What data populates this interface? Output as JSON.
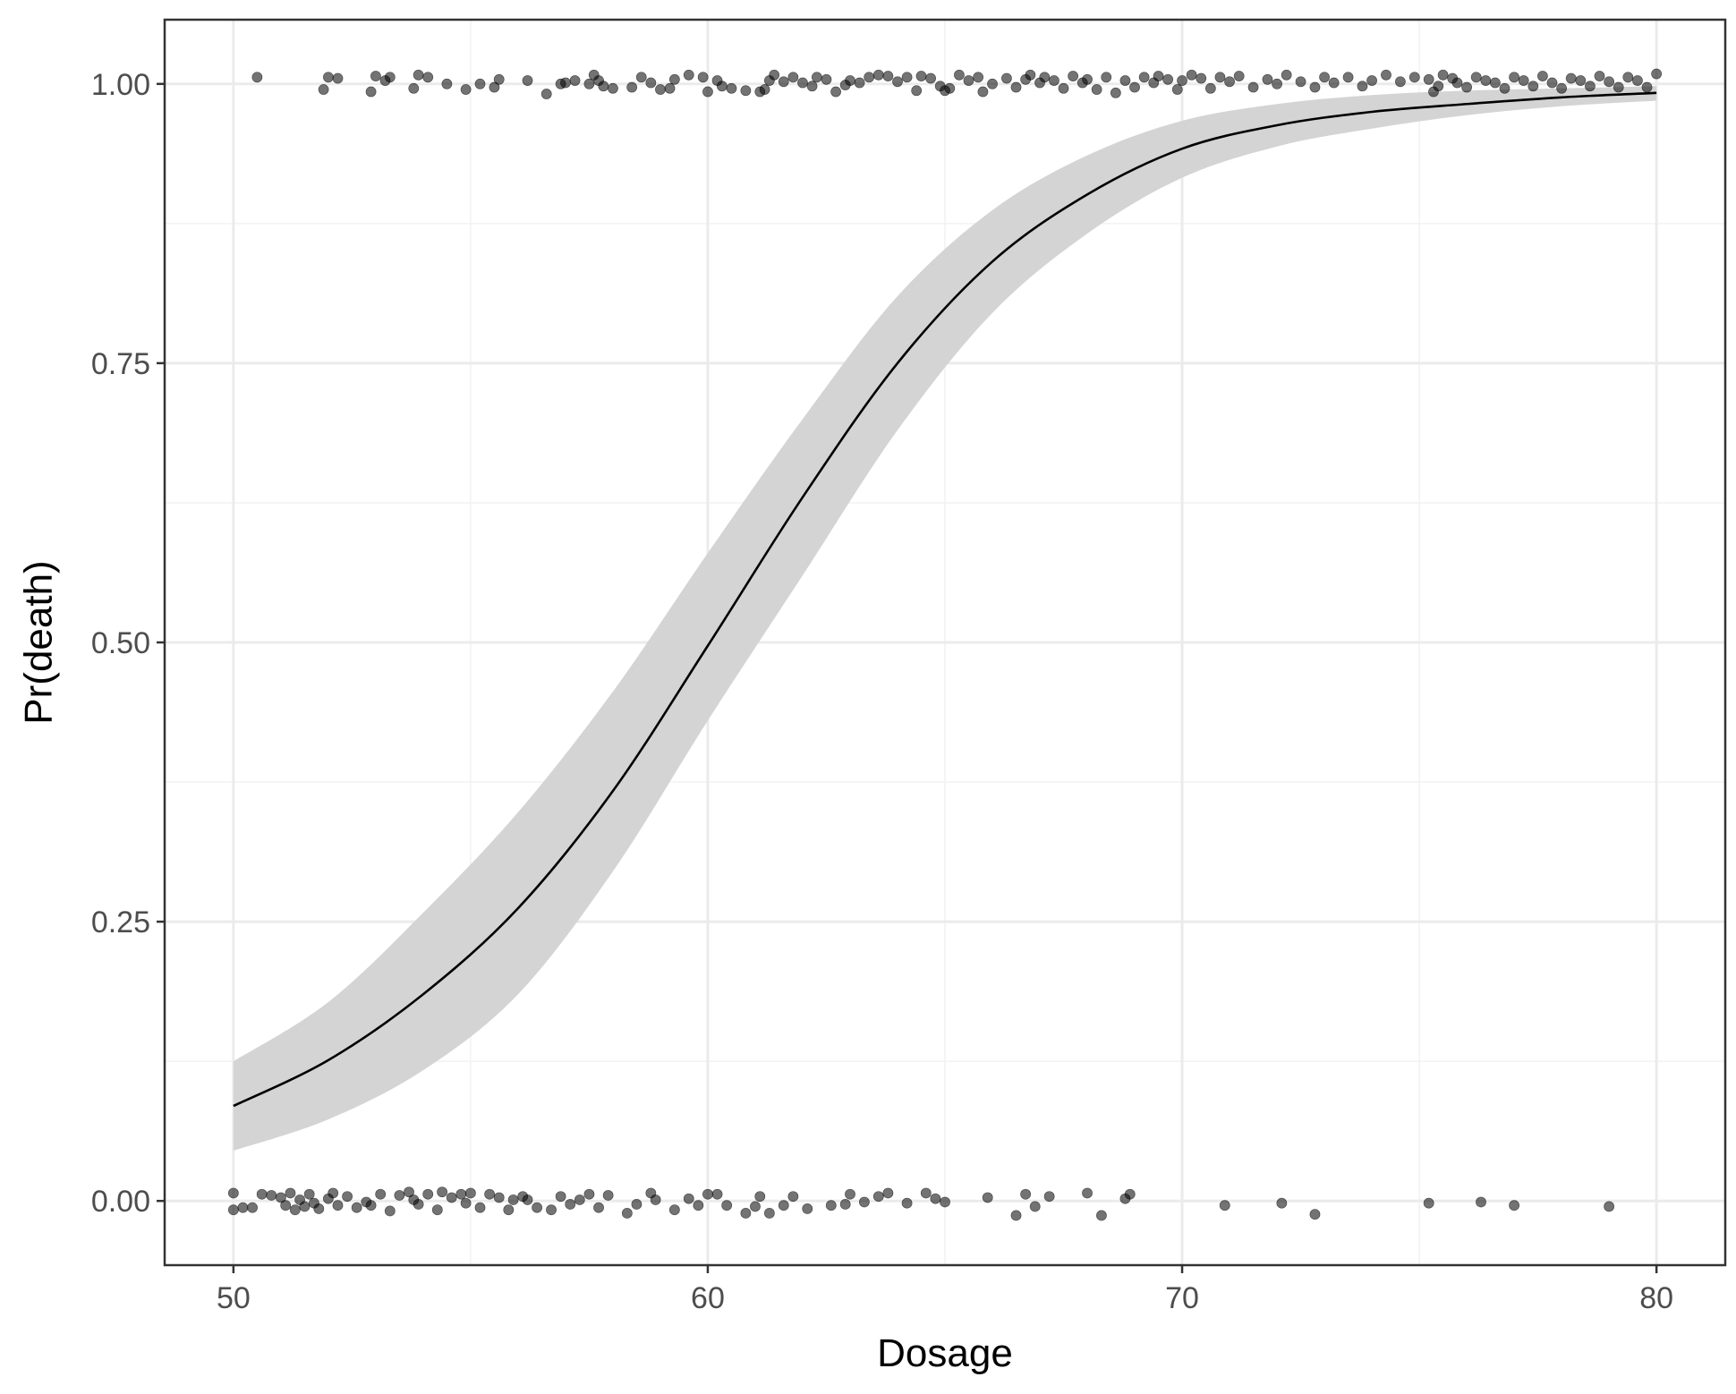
{
  "chart_data": {
    "type": "scatter",
    "title": "",
    "xlabel": "Dosage",
    "ylabel": "Pr(death)",
    "xlim": [
      48.55,
      81.45
    ],
    "ylim": [
      -0.0575,
      1.0575
    ],
    "x_ticks": [
      50,
      60,
      70,
      80
    ],
    "x_tick_labels": [
      "50",
      "60",
      "70",
      "80"
    ],
    "y_ticks": [
      0,
      0.25,
      0.5,
      0.75,
      1
    ],
    "y_tick_labels": [
      "0.00",
      "0.25",
      "0.50",
      "0.75",
      "1.00"
    ],
    "grid": true,
    "legend": "none",
    "colors": {
      "points": "#000000",
      "point_opacity": 0.55,
      "ribbon": "#d4d4d4",
      "fit_line": "#000000",
      "grid_major": "#ebebeb",
      "grid_minor": "#f2f2f2",
      "panel_border": "#333333"
    },
    "series": [
      {
        "kind": "jittered-points",
        "outcome": 1,
        "points": [
          [
            50.5,
            1.006
          ],
          [
            51.9,
            0.995
          ],
          [
            52.0,
            1.006
          ],
          [
            52.2,
            1.005
          ],
          [
            52.9,
            0.993
          ],
          [
            53.0,
            1.007
          ],
          [
            53.2,
            1.003
          ],
          [
            53.3,
            1.006
          ],
          [
            53.8,
            0.996
          ],
          [
            53.9,
            1.008
          ],
          [
            54.1,
            1.006
          ],
          [
            54.5,
            1.0
          ],
          [
            54.9,
            0.995
          ],
          [
            55.2,
            1.0
          ],
          [
            55.5,
            0.997
          ],
          [
            55.6,
            1.004
          ],
          [
            56.2,
            1.003
          ],
          [
            56.6,
            0.991
          ],
          [
            56.9,
            1.0
          ],
          [
            57.0,
            1.001
          ],
          [
            57.2,
            1.003
          ],
          [
            57.5,
            1.0
          ],
          [
            57.6,
            1.008
          ],
          [
            57.7,
            1.003
          ],
          [
            57.8,
            0.998
          ],
          [
            58.0,
            0.996
          ],
          [
            58.4,
            0.997
          ],
          [
            58.6,
            1.006
          ],
          [
            58.8,
            1.001
          ],
          [
            59.0,
            0.995
          ],
          [
            59.2,
            0.996
          ],
          [
            59.3,
            1.004
          ],
          [
            59.6,
            1.008
          ],
          [
            59.9,
            1.006
          ],
          [
            60.0,
            0.993
          ],
          [
            60.2,
            1.003
          ],
          [
            60.3,
            0.998
          ],
          [
            60.5,
            0.996
          ],
          [
            60.8,
            0.994
          ],
          [
            61.1,
            0.993
          ],
          [
            61.2,
            0.995
          ],
          [
            61.3,
            1.003
          ],
          [
            61.4,
            1.008
          ],
          [
            61.6,
            1.002
          ],
          [
            61.8,
            1.006
          ],
          [
            62.0,
            1.001
          ],
          [
            62.2,
            0.998
          ],
          [
            62.3,
            1.006
          ],
          [
            62.5,
            1.004
          ],
          [
            62.7,
            0.993
          ],
          [
            62.9,
            0.999
          ],
          [
            63.0,
            1.003
          ],
          [
            63.2,
            1.001
          ],
          [
            63.4,
            1.006
          ],
          [
            63.6,
            1.008
          ],
          [
            63.8,
            1.007
          ],
          [
            64.0,
            1.002
          ],
          [
            64.2,
            1.006
          ],
          [
            64.4,
            0.994
          ],
          [
            64.5,
            1.007
          ],
          [
            64.7,
            1.005
          ],
          [
            64.9,
            0.998
          ],
          [
            65.0,
            0.994
          ],
          [
            65.1,
            0.996
          ],
          [
            65.3,
            1.008
          ],
          [
            65.5,
            1.003
          ],
          [
            65.7,
            1.006
          ],
          [
            65.8,
            0.993
          ],
          [
            66.0,
            1.0
          ],
          [
            66.3,
            1.005
          ],
          [
            66.5,
            0.997
          ],
          [
            66.7,
            1.004
          ],
          [
            66.8,
            1.008
          ],
          [
            67.0,
            1.001
          ],
          [
            67.1,
            1.006
          ],
          [
            67.3,
            1.003
          ],
          [
            67.5,
            0.996
          ],
          [
            67.7,
            1.007
          ],
          [
            67.9,
            1.001
          ],
          [
            68.0,
            1.004
          ],
          [
            68.2,
            0.995
          ],
          [
            68.4,
            1.006
          ],
          [
            68.6,
            0.992
          ],
          [
            68.8,
            1.003
          ],
          [
            69.0,
            0.997
          ],
          [
            69.2,
            1.006
          ],
          [
            69.4,
            1.001
          ],
          [
            69.5,
            1.007
          ],
          [
            69.7,
            1.004
          ],
          [
            69.9,
            0.995
          ],
          [
            70.0,
            1.003
          ],
          [
            70.2,
            1.008
          ],
          [
            70.4,
            1.005
          ],
          [
            70.6,
            0.996
          ],
          [
            70.8,
            1.006
          ],
          [
            71.0,
            1.002
          ],
          [
            71.2,
            1.007
          ],
          [
            71.5,
            0.997
          ],
          [
            71.8,
            1.004
          ],
          [
            72.0,
            1.0
          ],
          [
            72.2,
            1.008
          ],
          [
            72.5,
            1.002
          ],
          [
            72.8,
            0.997
          ],
          [
            73.0,
            1.006
          ],
          [
            73.2,
            1.001
          ],
          [
            73.5,
            1.006
          ],
          [
            73.8,
            0.998
          ],
          [
            74.0,
            1.003
          ],
          [
            74.3,
            1.008
          ],
          [
            74.6,
            1.002
          ],
          [
            74.9,
            1.006
          ],
          [
            75.2,
            1.004
          ],
          [
            75.3,
            0.993
          ],
          [
            75.4,
            0.998
          ],
          [
            75.5,
            1.008
          ],
          [
            75.7,
            1.005
          ],
          [
            75.8,
            1.001
          ],
          [
            76.0,
            0.997
          ],
          [
            76.2,
            1.006
          ],
          [
            76.4,
            1.003
          ],
          [
            76.6,
            1.001
          ],
          [
            76.8,
            0.996
          ],
          [
            77.0,
            1.006
          ],
          [
            77.2,
            1.003
          ],
          [
            77.4,
            0.998
          ],
          [
            77.6,
            1.007
          ],
          [
            77.8,
            1.001
          ],
          [
            78.0,
            0.996
          ],
          [
            78.2,
            1.005
          ],
          [
            78.4,
            1.003
          ],
          [
            78.6,
            0.998
          ],
          [
            78.8,
            1.007
          ],
          [
            79.0,
            1.002
          ],
          [
            79.2,
            0.997
          ],
          [
            79.4,
            1.006
          ],
          [
            79.6,
            1.003
          ],
          [
            79.8,
            0.997
          ],
          [
            80.0,
            1.009
          ]
        ]
      },
      {
        "kind": "jittered-points",
        "outcome": 0,
        "points": [
          [
            50.0,
            0.007
          ],
          [
            50.0,
            -0.008
          ],
          [
            50.2,
            -0.006
          ],
          [
            50.4,
            -0.006
          ],
          [
            50.6,
            0.006
          ],
          [
            50.8,
            0.005
          ],
          [
            51.0,
            0.003
          ],
          [
            51.1,
            -0.004
          ],
          [
            51.2,
            0.007
          ],
          [
            51.3,
            -0.008
          ],
          [
            51.4,
            0.001
          ],
          [
            51.5,
            -0.005
          ],
          [
            51.6,
            0.006
          ],
          [
            51.7,
            -0.002
          ],
          [
            51.8,
            -0.007
          ],
          [
            52.0,
            0.002
          ],
          [
            52.1,
            0.007
          ],
          [
            52.2,
            -0.004
          ],
          [
            52.4,
            0.004
          ],
          [
            52.6,
            -0.006
          ],
          [
            52.8,
            -0.001
          ],
          [
            52.9,
            -0.004
          ],
          [
            53.1,
            0.006
          ],
          [
            53.3,
            -0.009
          ],
          [
            53.5,
            0.005
          ],
          [
            53.7,
            0.008
          ],
          [
            53.8,
            0.001
          ],
          [
            53.9,
            -0.003
          ],
          [
            54.1,
            0.006
          ],
          [
            54.3,
            -0.008
          ],
          [
            54.4,
            0.008
          ],
          [
            54.6,
            0.003
          ],
          [
            54.8,
            0.006
          ],
          [
            54.9,
            -0.002
          ],
          [
            55.0,
            0.007
          ],
          [
            55.2,
            -0.006
          ],
          [
            55.4,
            0.006
          ],
          [
            55.6,
            0.003
          ],
          [
            55.8,
            -0.008
          ],
          [
            55.9,
            0.001
          ],
          [
            56.1,
            0.004
          ],
          [
            56.2,
            0.001
          ],
          [
            56.4,
            -0.006
          ],
          [
            56.7,
            -0.008
          ],
          [
            56.9,
            0.004
          ],
          [
            57.1,
            -0.003
          ],
          [
            57.3,
            0.001
          ],
          [
            57.5,
            0.006
          ],
          [
            57.7,
            -0.006
          ],
          [
            57.9,
            0.005
          ],
          [
            58.3,
            -0.011
          ],
          [
            58.5,
            -0.003
          ],
          [
            58.8,
            0.007
          ],
          [
            58.9,
            0.001
          ],
          [
            59.3,
            -0.008
          ],
          [
            59.6,
            0.002
          ],
          [
            59.8,
            -0.004
          ],
          [
            60.0,
            0.006
          ],
          [
            60.2,
            0.006
          ],
          [
            60.4,
            -0.004
          ],
          [
            60.8,
            -0.011
          ],
          [
            61.0,
            -0.005
          ],
          [
            61.1,
            0.004
          ],
          [
            61.3,
            -0.011
          ],
          [
            61.6,
            -0.004
          ],
          [
            61.8,
            0.004
          ],
          [
            62.1,
            -0.007
          ],
          [
            62.6,
            -0.004
          ],
          [
            62.9,
            -0.003
          ],
          [
            63.0,
            0.006
          ],
          [
            63.3,
            -0.001
          ],
          [
            63.6,
            0.004
          ],
          [
            63.8,
            0.007
          ],
          [
            64.2,
            -0.002
          ],
          [
            64.6,
            0.007
          ],
          [
            64.8,
            0.002
          ],
          [
            65.0,
            -0.001
          ],
          [
            65.9,
            0.003
          ],
          [
            66.5,
            -0.013
          ],
          [
            66.7,
            0.006
          ],
          [
            66.9,
            -0.005
          ],
          [
            67.2,
            0.004
          ],
          [
            68.0,
            0.007
          ],
          [
            68.3,
            -0.013
          ],
          [
            68.8,
            0.002
          ],
          [
            68.9,
            0.006
          ],
          [
            70.9,
            -0.004
          ],
          [
            72.1,
            -0.002
          ],
          [
            72.8,
            -0.012
          ],
          [
            75.2,
            -0.002
          ],
          [
            76.3,
            -0.001
          ],
          [
            77.0,
            -0.004
          ],
          [
            79.0,
            -0.005
          ]
        ]
      },
      {
        "kind": "fit-line",
        "model": "logistic",
        "x": [
          50,
          52,
          54,
          56,
          58,
          60,
          62,
          64,
          66,
          68,
          70,
          72,
          74,
          76,
          78,
          80
        ],
        "y": [
          0.085,
          0.126,
          0.185,
          0.262,
          0.367,
          0.497,
          0.63,
          0.75,
          0.841,
          0.901,
          0.942,
          0.963,
          0.975,
          0.982,
          0.988,
          0.992
        ]
      },
      {
        "kind": "confidence-band",
        "x": [
          50,
          52,
          54,
          56,
          58,
          60,
          62,
          64,
          66,
          68,
          70,
          72,
          74,
          76,
          78,
          80
        ],
        "lower": [
          0.045,
          0.073,
          0.117,
          0.185,
          0.295,
          0.43,
          0.56,
          0.69,
          0.795,
          0.866,
          0.916,
          0.944,
          0.96,
          0.972,
          0.98,
          0.985
        ],
        "upper": [
          0.125,
          0.178,
          0.258,
          0.348,
          0.456,
          0.58,
          0.7,
          0.81,
          0.887,
          0.936,
          0.967,
          0.982,
          0.99,
          0.994,
          0.996,
          0.998
        ]
      }
    ]
  }
}
